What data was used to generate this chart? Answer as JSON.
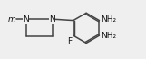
{
  "bg_color": "#efefef",
  "line_color": "#444444",
  "text_color": "#111111",
  "line_width": 1.1,
  "font_size": 6.5,
  "fig_width": 1.61,
  "fig_height": 0.65,
  "dpi": 100,
  "xlim": [
    0,
    9.5
  ],
  "ylim": [
    0,
    4.0
  ]
}
